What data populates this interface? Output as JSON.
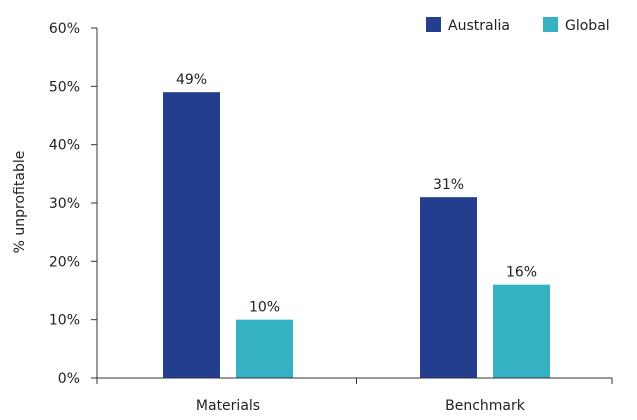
{
  "chart_data": {
    "type": "bar",
    "ylabel": "% unprofitable",
    "xlabel": "",
    "ylim": [
      0,
      60
    ],
    "y_ticks": [
      0,
      10,
      20,
      30,
      40,
      50,
      60
    ],
    "y_tick_labels": [
      "0%",
      "10%",
      "20%",
      "30%",
      "40%",
      "50%",
      "60%"
    ],
    "categories": [
      "Materials",
      "Benchmark"
    ],
    "series": [
      {
        "name": "Australia",
        "color": "#233e8f",
        "values": [
          49,
          31
        ],
        "labels": [
          "49%",
          "31%"
        ]
      },
      {
        "name": "Global",
        "color": "#35b1c4",
        "values": [
          10,
          16
        ],
        "labels": [
          "10%",
          "16%"
        ]
      }
    ],
    "legend_position": "top-right",
    "grid": false
  }
}
